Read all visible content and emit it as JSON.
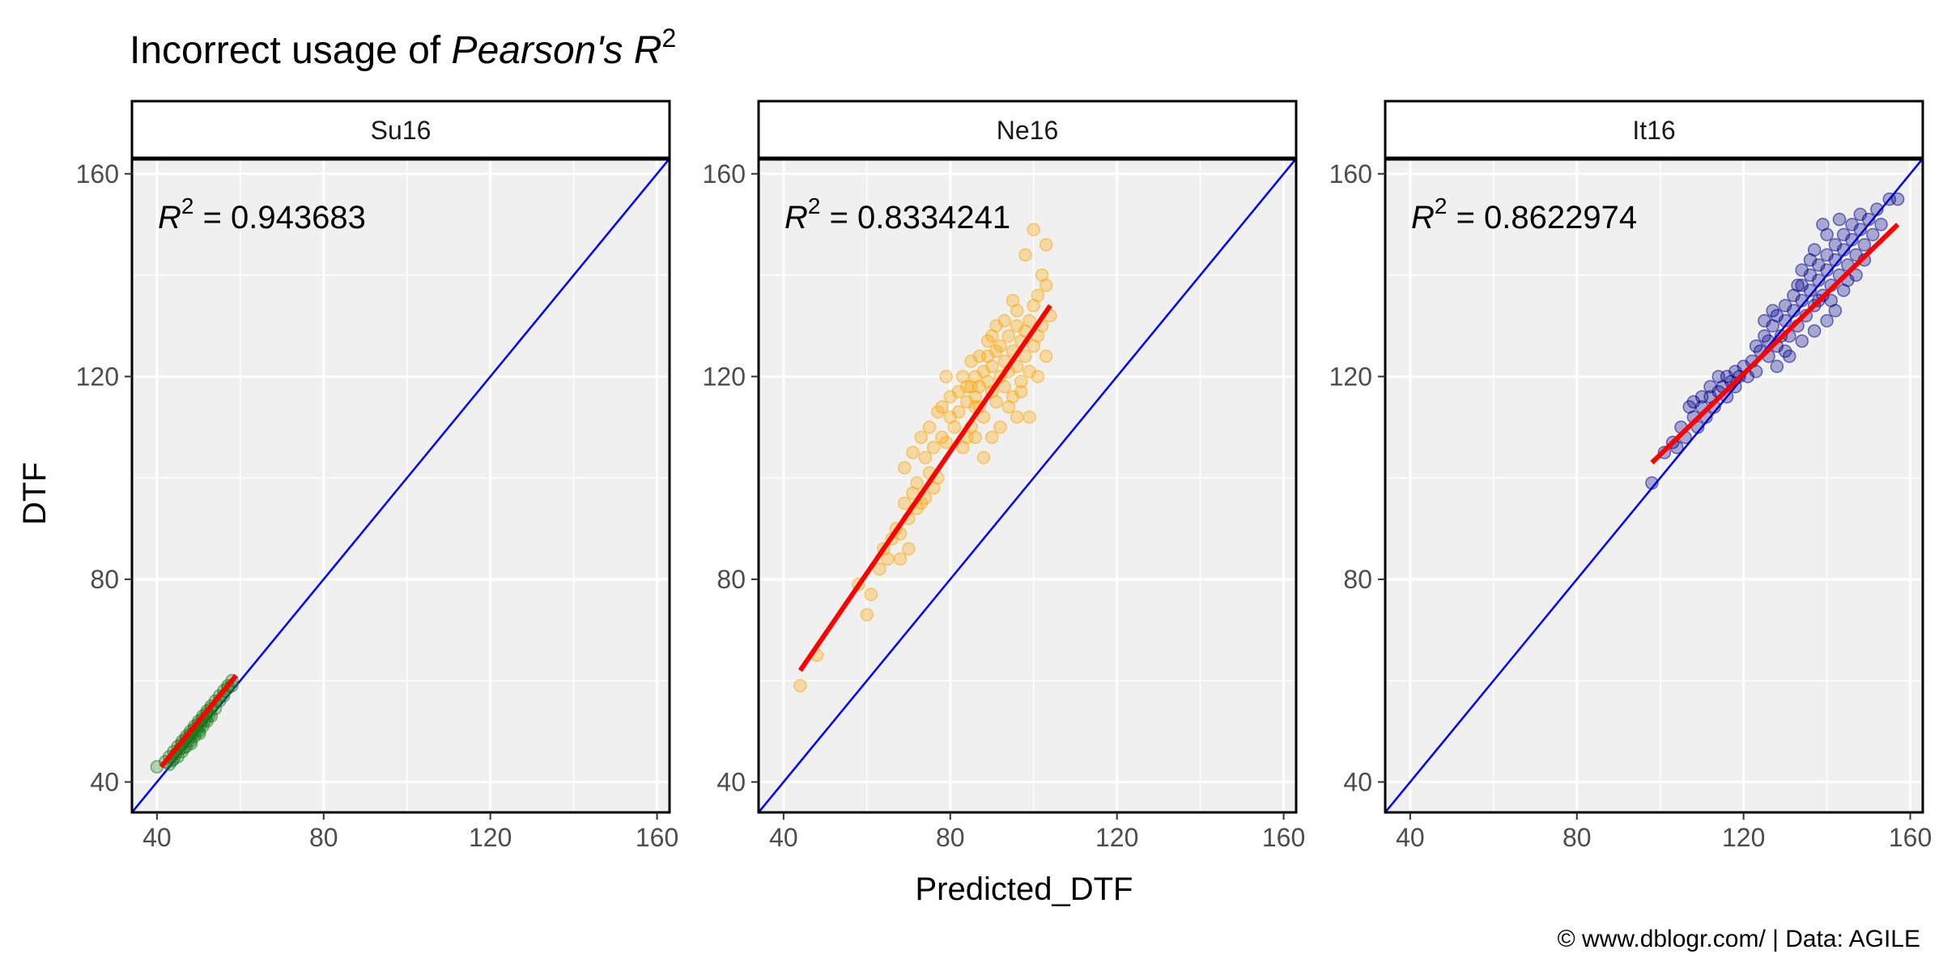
{
  "chart_data": {
    "type": "scatter",
    "title": {
      "prefix": "Incorrect usage of ",
      "italic": "Pearson's R",
      "sup": "2"
    },
    "xlabel": "Predicted_DTF",
    "ylabel": "DTF",
    "xlim": [
      34,
      163
    ],
    "ylim": [
      34,
      163
    ],
    "xticks": [
      40,
      80,
      120,
      160
    ],
    "yticks": [
      40,
      80,
      120,
      160
    ],
    "caption": "© www.dblogr.com/  |  Data: AGILE",
    "reference_line": {
      "slope": 1,
      "intercept": 0,
      "color": "#0000ff"
    },
    "fit_line_color": "#ff0000",
    "panels": [
      {
        "label": "Su16",
        "color": "#1a7a1a",
        "r2_label": "R",
        "r2_sup": "2",
        "r2_value": " = 0.943683",
        "fit": [
          [
            41,
            43
          ],
          [
            59,
            61
          ]
        ],
        "points": [
          [
            40,
            43
          ],
          [
            42,
            44
          ],
          [
            43,
            45
          ],
          [
            43,
            43.5
          ],
          [
            44,
            46
          ],
          [
            44,
            44.5
          ],
          [
            45,
            47
          ],
          [
            45,
            45
          ],
          [
            46,
            48
          ],
          [
            46,
            46
          ],
          [
            46,
            47.5
          ],
          [
            47,
            49
          ],
          [
            47,
            47
          ],
          [
            47,
            48.5
          ],
          [
            48,
            50
          ],
          [
            48,
            48
          ],
          [
            48,
            49.5
          ],
          [
            49,
            51
          ],
          [
            49,
            49
          ],
          [
            49,
            50.5
          ],
          [
            50,
            52
          ],
          [
            50,
            50
          ],
          [
            50,
            51.5
          ],
          [
            51,
            53
          ],
          [
            51,
            51
          ],
          [
            51,
            52.5
          ],
          [
            52,
            54
          ],
          [
            52,
            52
          ],
          [
            52,
            53.5
          ],
          [
            53,
            55
          ],
          [
            53,
            53
          ],
          [
            53,
            54.5
          ],
          [
            54,
            56
          ],
          [
            54,
            54.5
          ],
          [
            55,
            57
          ],
          [
            55,
            56
          ],
          [
            56,
            58
          ],
          [
            56,
            57
          ],
          [
            57,
            58.5
          ],
          [
            57,
            59
          ],
          [
            58,
            59
          ],
          [
            58,
            60
          ],
          [
            45.5,
            46.5
          ],
          [
            46.5,
            46.8
          ],
          [
            47.5,
            48.2
          ],
          [
            48.5,
            49.2
          ],
          [
            49.5,
            50.2
          ],
          [
            50.5,
            51.2
          ],
          [
            51.5,
            52.2
          ],
          [
            52.5,
            53.2
          ],
          [
            44.5,
            45.5
          ],
          [
            43.5,
            44.2
          ],
          [
            48.2,
            47.6
          ],
          [
            50.2,
            49.6
          ]
        ]
      },
      {
        "label": "Ne16",
        "color": "#ffa500",
        "r2_label": "R",
        "r2_sup": "2",
        "r2_value": " = 0.8334241",
        "fit": [
          [
            44,
            62
          ],
          [
            104,
            134
          ]
        ],
        "points": [
          [
            44,
            59
          ],
          [
            48,
            65
          ],
          [
            58,
            79
          ],
          [
            60,
            73
          ],
          [
            61,
            77
          ],
          [
            63,
            82
          ],
          [
            64,
            86
          ],
          [
            65,
            84
          ],
          [
            66,
            88
          ],
          [
            67,
            90
          ],
          [
            68,
            89
          ],
          [
            69,
            95
          ],
          [
            70,
            92
          ],
          [
            71,
            97
          ],
          [
            72,
            99
          ],
          [
            73,
            95
          ],
          [
            74,
            104
          ],
          [
            75,
            101
          ],
          [
            76,
            106
          ],
          [
            77,
            100
          ],
          [
            78,
            108
          ],
          [
            79,
            107
          ],
          [
            80,
            112
          ],
          [
            81,
            110
          ],
          [
            82,
            113
          ],
          [
            83,
            106
          ],
          [
            84,
            115
          ],
          [
            84,
            108
          ],
          [
            85,
            118
          ],
          [
            85,
            110
          ],
          [
            86,
            116
          ],
          [
            86,
            120
          ],
          [
            87,
            114
          ],
          [
            87,
            118
          ],
          [
            88,
            121
          ],
          [
            88,
            112
          ],
          [
            89,
            119
          ],
          [
            89,
            124
          ],
          [
            90,
            117
          ],
          [
            90,
            122
          ],
          [
            91,
            115
          ],
          [
            91,
            125
          ],
          [
            92,
            120
          ],
          [
            92,
            126
          ],
          [
            93,
            118
          ],
          [
            93,
            123
          ],
          [
            94,
            128
          ],
          [
            94,
            121
          ],
          [
            95,
            116
          ],
          [
            95,
            125
          ],
          [
            96,
            122
          ],
          [
            96,
            130
          ],
          [
            97,
            119
          ],
          [
            97,
            127
          ],
          [
            98,
            124
          ],
          [
            98,
            129
          ],
          [
            99,
            121
          ],
          [
            99,
            131
          ],
          [
            100,
            126
          ],
          [
            100,
            134
          ],
          [
            101,
            128
          ],
          [
            101,
            136
          ],
          [
            102,
            140
          ],
          [
            102,
            130
          ],
          [
            103,
            138
          ],
          [
            103,
            146
          ],
          [
            104,
            132
          ],
          [
            100,
            149
          ],
          [
            98,
            144
          ],
          [
            95,
            135
          ],
          [
            92,
            110
          ],
          [
            90,
            108
          ],
          [
            88,
            104
          ],
          [
            86,
            108
          ],
          [
            83,
            120
          ],
          [
            80,
            116
          ],
          [
            78,
            114
          ],
          [
            76,
            98
          ],
          [
            74,
            96
          ],
          [
            72,
            94
          ],
          [
            70,
            86
          ],
          [
            68,
            84
          ],
          [
            97,
            117
          ],
          [
            99,
            112
          ],
          [
            94,
            114
          ],
          [
            91,
            130
          ],
          [
            89,
            127
          ],
          [
            87,
            124
          ],
          [
            85,
            123
          ],
          [
            82,
            117
          ],
          [
            79,
            120
          ],
          [
            77,
            113
          ],
          [
            75,
            110
          ],
          [
            73,
            108
          ],
          [
            71,
            105
          ],
          [
            69,
            102
          ],
          [
            96,
            133
          ],
          [
            93,
            131
          ],
          [
            90,
            128
          ],
          [
            101,
            120
          ],
          [
            103,
            124
          ],
          [
            96,
            112
          ],
          [
            84,
            118
          ],
          [
            86,
            114
          ]
        ]
      },
      {
        "label": "It16",
        "color": "#00008b",
        "r2_label": "R",
        "r2_sup": "2",
        "r2_value": " = 0.8622974",
        "fit": [
          [
            98,
            103
          ],
          [
            157,
            150
          ]
        ],
        "points": [
          [
            98,
            99
          ],
          [
            101,
            105
          ],
          [
            103,
            107
          ],
          [
            104,
            106
          ],
          [
            105,
            110
          ],
          [
            106,
            108
          ],
          [
            107,
            114
          ],
          [
            108,
            112
          ],
          [
            108,
            115
          ],
          [
            109,
            110
          ],
          [
            110,
            114
          ],
          [
            110,
            116
          ],
          [
            111,
            112
          ],
          [
            112,
            116
          ],
          [
            112,
            118
          ],
          [
            113,
            114
          ],
          [
            114,
            117
          ],
          [
            114,
            120
          ],
          [
            115,
            118
          ],
          [
            116,
            116
          ],
          [
            116,
            120
          ],
          [
            117,
            119
          ],
          [
            118,
            121
          ],
          [
            118,
            118
          ],
          [
            119,
            120
          ],
          [
            120,
            122
          ],
          [
            121,
            120
          ],
          [
            122,
            123
          ],
          [
            123,
            126
          ],
          [
            123,
            121
          ],
          [
            124,
            125
          ],
          [
            125,
            128
          ],
          [
            126,
            124
          ],
          [
            126,
            127
          ],
          [
            127,
            130
          ],
          [
            128,
            126
          ],
          [
            128,
            132
          ],
          [
            129,
            128
          ],
          [
            130,
            131
          ],
          [
            130,
            134
          ],
          [
            131,
            128
          ],
          [
            132,
            133
          ],
          [
            132,
            136
          ],
          [
            133,
            130
          ],
          [
            134,
            135
          ],
          [
            134,
            138
          ],
          [
            135,
            132
          ],
          [
            136,
            137
          ],
          [
            136,
            140
          ],
          [
            137,
            134
          ],
          [
            138,
            139
          ],
          [
            138,
            142
          ],
          [
            139,
            136
          ],
          [
            140,
            141
          ],
          [
            140,
            144
          ],
          [
            141,
            138
          ],
          [
            142,
            143
          ],
          [
            142,
            146
          ],
          [
            143,
            140
          ],
          [
            144,
            145
          ],
          [
            144,
            148
          ],
          [
            145,
            142
          ],
          [
            146,
            147
          ],
          [
            146,
            150
          ],
          [
            147,
            144
          ],
          [
            148,
            149
          ],
          [
            148,
            152
          ],
          [
            149,
            146
          ],
          [
            150,
            151
          ],
          [
            151,
            148
          ],
          [
            152,
            153
          ],
          [
            153,
            150
          ],
          [
            155,
            155
          ],
          [
            157,
            155
          ],
          [
            134,
            127
          ],
          [
            137,
            129
          ],
          [
            140,
            131
          ],
          [
            142,
            133
          ],
          [
            131,
            124
          ],
          [
            128,
            122
          ],
          [
            134,
            141
          ],
          [
            137,
            145
          ],
          [
            140,
            148
          ],
          [
            143,
            151
          ],
          [
            139,
            150
          ],
          [
            136,
            143
          ],
          [
            144,
            137
          ],
          [
            147,
            140
          ],
          [
            133,
            138
          ],
          [
            130,
            125
          ],
          [
            138,
            135
          ],
          [
            141,
            135
          ],
          [
            145,
            139
          ],
          [
            149,
            143
          ],
          [
            127,
            133
          ],
          [
            125,
            131
          ]
        ]
      }
    ]
  }
}
